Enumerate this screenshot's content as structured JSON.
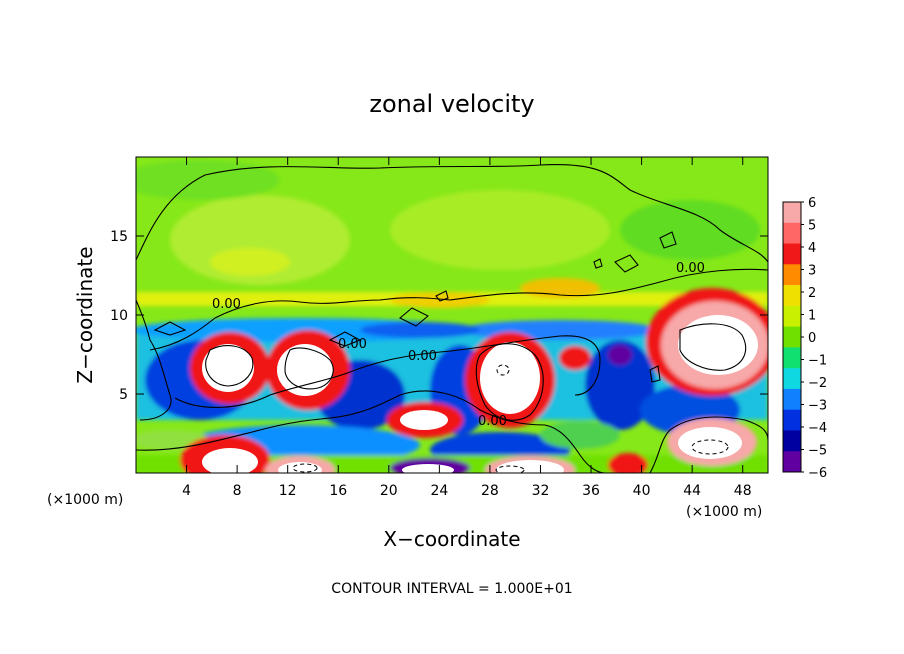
{
  "chart_data": {
    "type": "heatmap",
    "title": "zonal velocity",
    "xlabel": "X−coordinate",
    "ylabel": "Z−coordinate",
    "x_unit_left": "(×1000 m)",
    "x_unit_right": "(×1000 m)",
    "xlim": [
      0,
      50
    ],
    "ylim": [
      0,
      20
    ],
    "x_ticks": [
      4,
      8,
      12,
      16,
      20,
      24,
      28,
      32,
      36,
      40,
      44,
      48
    ],
    "y_ticks": [
      5,
      10,
      15
    ],
    "colorbar": {
      "min": -6,
      "max": 6,
      "tick_labels": [
        "6",
        "5",
        "4",
        "3",
        "2",
        "1",
        "0",
        "−1",
        "−2",
        "−3",
        "−4",
        "−5",
        "−6"
      ],
      "colors": [
        "#f7a8a8",
        "#ff6666",
        "#f01818",
        "#ff8c00",
        "#f0e000",
        "#c8f000",
        "#70e000",
        "#10e070",
        "#10d8e0",
        "#1080ff",
        "#0030e0",
        "#0000a0",
        "#6000a0"
      ]
    },
    "contour_interval_text": "CONTOUR INTERVAL = 1.000E+01",
    "contour_labels": [
      "0.00",
      "0.00",
      "0.00",
      "0.00",
      "0.00"
    ]
  }
}
